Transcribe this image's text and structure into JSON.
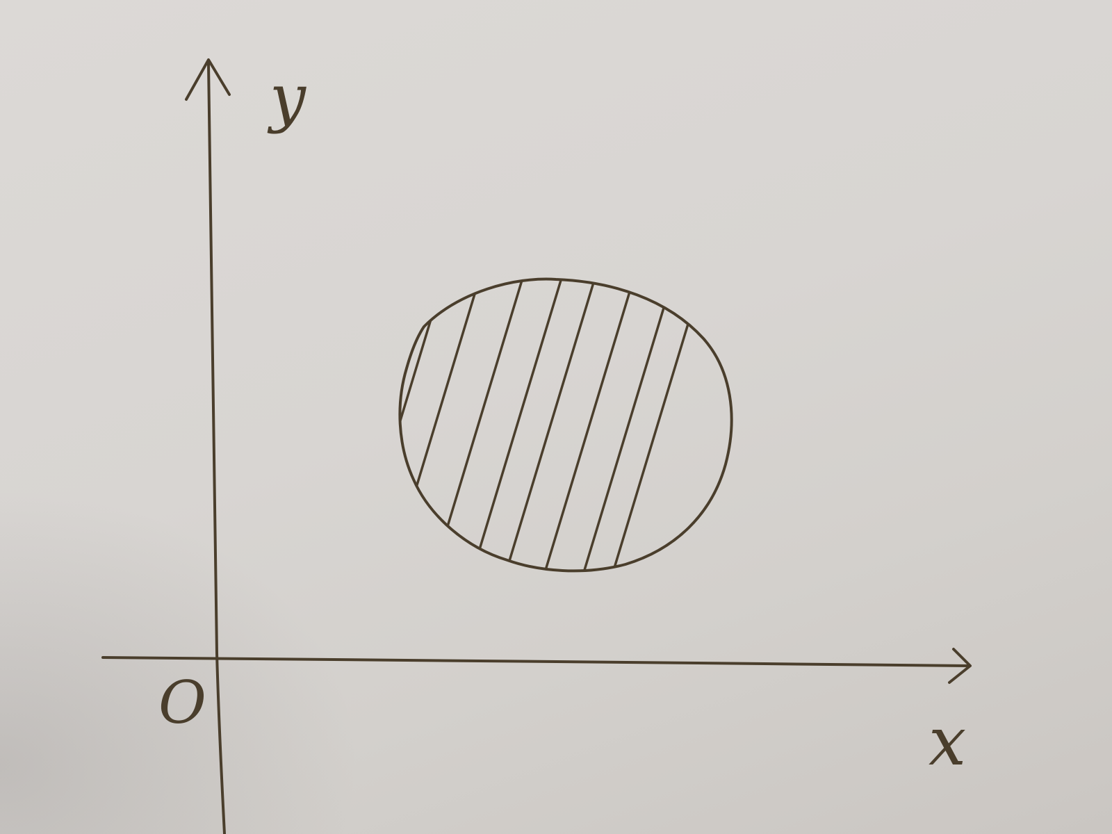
{
  "diagram": {
    "axes": {
      "x_label": "x",
      "y_label": "y",
      "origin_label": "O"
    },
    "region": {
      "shape": "closed-curve",
      "fill": "vertical-hatching"
    },
    "colors": {
      "ink": "#4a3e2c",
      "paper": "#d9d6d3"
    }
  }
}
